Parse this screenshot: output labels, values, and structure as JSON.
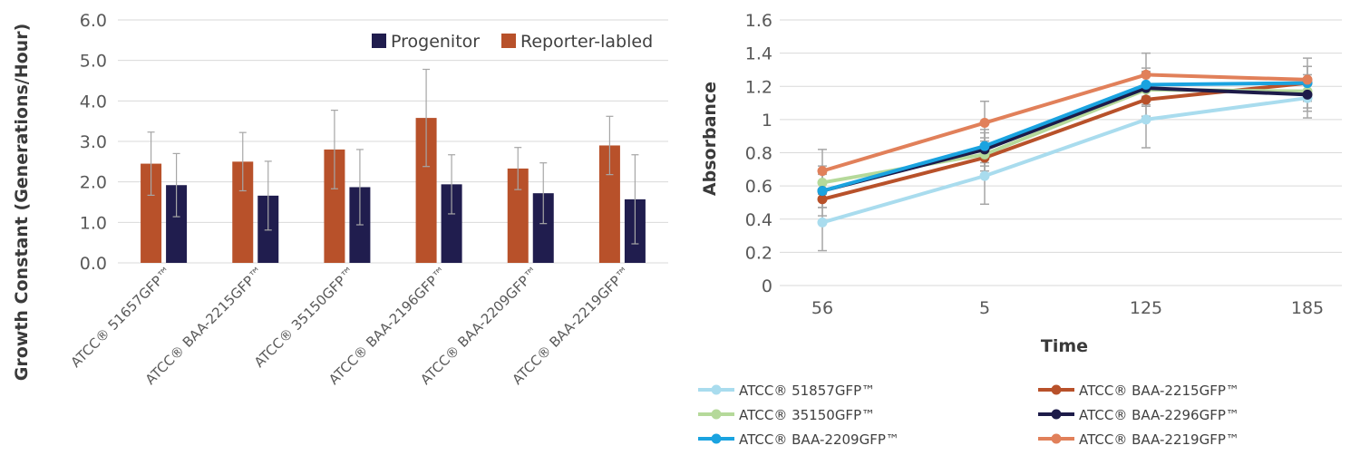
{
  "colors": {
    "progenitor": "#201d4e",
    "reporter": "#b8512a",
    "grid": "#d9d9d9",
    "axis_text": "#595959",
    "error_bar": "#a6a6a6"
  },
  "chart_data": [
    {
      "type": "bar",
      "title": "",
      "xlabel": "",
      "ylabel": "Growth Constant (Generations/Hour)",
      "ylim": [
        0,
        6
      ],
      "yticks": [
        "0.0",
        "1.0",
        "2.0",
        "3.0",
        "4.0",
        "5.0",
        "6.0"
      ],
      "grid": true,
      "legend_position": "top-right",
      "categories": [
        "ATCC® 51657GFP™",
        "ATCC® BAA-2215GFP™",
        "ATCC® 35150GFP™",
        "ATCC® BAA-2196GFP™",
        "ATCC® BAA-2209GFP™",
        "ATCC® BAA-2219GFP™"
      ],
      "series": [
        {
          "name": "Reporter-labled",
          "color": "#b8512a",
          "values": [
            2.45,
            2.5,
            2.8,
            3.58,
            2.33,
            2.9
          ],
          "error": [
            0.78,
            0.72,
            0.97,
            1.2,
            0.52,
            0.72
          ]
        },
        {
          "name": "Progenitor",
          "color": "#201d4e",
          "values": [
            1.92,
            1.66,
            1.87,
            1.94,
            1.72,
            1.57
          ],
          "error": [
            0.78,
            0.85,
            0.93,
            0.73,
            0.75,
            1.1
          ]
        }
      ],
      "legend_order": [
        "Progenitor",
        "Reporter-labled"
      ]
    },
    {
      "type": "line",
      "title": "",
      "xlabel": "Time",
      "ylabel": "Absorbance",
      "ylim": [
        0,
        1.6
      ],
      "yticks": [
        "0",
        "0.2",
        "0.4",
        "0.6",
        "0.8",
        "1",
        "1.2",
        "1.4",
        "1.6"
      ],
      "grid": true,
      "legend_position": "bottom",
      "x": [
        "56",
        "5",
        "125",
        "185"
      ],
      "series": [
        {
          "name": "ATCC® 51857GFP™",
          "color": "#a9dcee",
          "values": [
            0.38,
            0.66,
            1.0,
            1.13
          ],
          "error": [
            0.17,
            0.17,
            0.17,
            0.12
          ]
        },
        {
          "name": "ATCC® BAA-2215GFP™",
          "color": "#b8512a",
          "values": [
            0.52,
            0.77,
            1.12,
            1.22
          ],
          "error": [
            0.1,
            0.1,
            0.1,
            0.1
          ]
        },
        {
          "name": "ATCC® 35150GFP™",
          "color": "#b5d99a",
          "values": [
            0.62,
            0.79,
            1.18,
            1.17
          ],
          "error": [
            0.1,
            0.1,
            0.1,
            0.1
          ]
        },
        {
          "name": "ATCC® BAA-2296GFP™",
          "color": "#1d1b49",
          "values": [
            0.57,
            0.82,
            1.19,
            1.15
          ],
          "error": [
            0.1,
            0.1,
            0.1,
            0.1
          ]
        },
        {
          "name": "ATCC® BAA-2209GFP™",
          "color": "#1aa3e0",
          "values": [
            0.57,
            0.84,
            1.21,
            1.22
          ],
          "error": [
            0.1,
            0.1,
            0.1,
            0.1
          ]
        },
        {
          "name": "ATCC® BAA-2219GFP™",
          "color": "#e1805a",
          "values": [
            0.69,
            0.98,
            1.27,
            1.24
          ],
          "error": [
            0.13,
            0.13,
            0.13,
            0.13
          ]
        }
      ]
    }
  ]
}
